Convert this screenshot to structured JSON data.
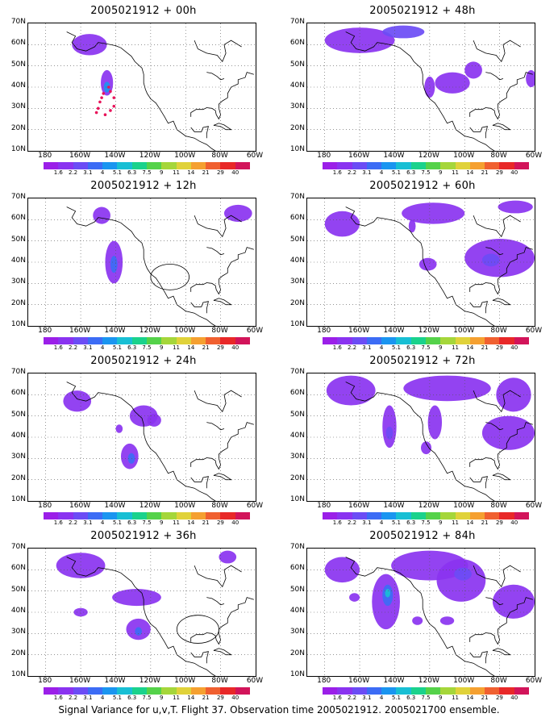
{
  "caption": "Signal Variance for u,v,T. Flight 37. Observation time 2005021912. 2005021700 ensemble.",
  "lat_labels": [
    "70N",
    "60N",
    "50N",
    "40N",
    "30N",
    "20N",
    "10N"
  ],
  "lon_labels": [
    "180",
    "160W",
    "140W",
    "120W",
    "100W",
    "80W",
    "60W"
  ],
  "colorbar": {
    "levels": [
      "1.6",
      "2.2",
      "3.1",
      "4",
      "5.1",
      "6.3",
      "7.5",
      "9",
      "11",
      "14",
      "21",
      "29",
      "40"
    ],
    "colors": [
      "#9b1fe8",
      "#8a33f0",
      "#6b4cf5",
      "#3c6cf5",
      "#1a95f0",
      "#18bfd4",
      "#1ad28c",
      "#55d24a",
      "#a5d63a",
      "#e0d23a",
      "#f5a030",
      "#f06030",
      "#e82828",
      "#d2145a"
    ]
  },
  "panels": [
    {
      "title": "2005021912 + 00h",
      "col": 0,
      "row": 0,
      "blobs": [
        {
          "lon": -155,
          "lat": 60,
          "rx": 10,
          "ry": 5,
          "level": 1
        },
        {
          "lon": -145,
          "lat": 42,
          "rx": 3.5,
          "ry": 6,
          "level": 1
        },
        {
          "lon": -145,
          "lat": 40,
          "rx": 1.8,
          "ry": 2.5,
          "level": 4
        }
      ],
      "track": [
        [
          -147,
          37
        ],
        [
          -148,
          35
        ],
        [
          -149,
          33
        ],
        [
          -150,
          30
        ],
        [
          -151,
          28
        ],
        [
          -146,
          27
        ],
        [
          -143,
          29
        ],
        [
          -141,
          31
        ],
        [
          -141,
          35
        ],
        [
          -143,
          38
        ],
        [
          -144,
          40
        ]
      ],
      "circle": null
    },
    {
      "title": "2005021912 + 48h",
      "col": 1,
      "row": 0,
      "blobs": [
        {
          "lon": -160,
          "lat": 62,
          "rx": 20,
          "ry": 6,
          "level": 1
        },
        {
          "lon": -135,
          "lat": 66,
          "rx": 12,
          "ry": 3,
          "level": 2
        },
        {
          "lon": -120,
          "lat": 40,
          "rx": 3,
          "ry": 5,
          "level": 1
        },
        {
          "lon": -107,
          "lat": 42,
          "rx": 10,
          "ry": 5,
          "level": 1
        },
        {
          "lon": -95,
          "lat": 48,
          "rx": 5,
          "ry": 4,
          "level": 1
        },
        {
          "lon": -62,
          "lat": 44,
          "rx": 3,
          "ry": 4,
          "level": 1
        }
      ],
      "track": [],
      "circle": null
    },
    {
      "title": "2005021912 + 12h",
      "col": 0,
      "row": 1,
      "blobs": [
        {
          "lon": -148,
          "lat": 62,
          "rx": 5,
          "ry": 4,
          "level": 1
        },
        {
          "lon": -70,
          "lat": 63,
          "rx": 8,
          "ry": 4,
          "level": 1
        },
        {
          "lon": -141,
          "lat": 40,
          "rx": 5,
          "ry": 10,
          "level": 1
        },
        {
          "lon": -141,
          "lat": 39,
          "rx": 2,
          "ry": 4,
          "level": 3
        }
      ],
      "track": [],
      "circle": {
        "lon": -109,
        "lat": 33,
        "r": 11
      }
    },
    {
      "title": "2005021912 + 60h",
      "col": 1,
      "row": 1,
      "blobs": [
        {
          "lon": -170,
          "lat": 58,
          "rx": 10,
          "ry": 6,
          "level": 1
        },
        {
          "lon": -118,
          "lat": 63,
          "rx": 18,
          "ry": 5,
          "level": 1
        },
        {
          "lon": -71,
          "lat": 66,
          "rx": 10,
          "ry": 3,
          "level": 1
        },
        {
          "lon": -130,
          "lat": 57,
          "rx": 2,
          "ry": 3,
          "level": 1
        },
        {
          "lon": -121,
          "lat": 39,
          "rx": 5,
          "ry": 3,
          "level": 1
        },
        {
          "lon": -80,
          "lat": 42,
          "rx": 20,
          "ry": 9,
          "level": 1
        },
        {
          "lon": -85,
          "lat": 41,
          "rx": 5,
          "ry": 3,
          "level": 2
        }
      ],
      "track": [],
      "circle": null
    },
    {
      "title": "2005021912 + 24h",
      "col": 0,
      "row": 2,
      "blobs": [
        {
          "lon": -162,
          "lat": 57,
          "rx": 8,
          "ry": 5,
          "level": 1
        },
        {
          "lon": -124,
          "lat": 50,
          "rx": 8,
          "ry": 5,
          "level": 1
        },
        {
          "lon": -132,
          "lat": 31,
          "rx": 5,
          "ry": 6,
          "level": 1
        },
        {
          "lon": -131,
          "lat": 30,
          "rx": 2,
          "ry": 2.5,
          "level": 3
        },
        {
          "lon": -138,
          "lat": 44,
          "rx": 2,
          "ry": 2,
          "level": 1
        },
        {
          "lon": -118,
          "lat": 48,
          "rx": 4,
          "ry": 3,
          "level": 1
        }
      ],
      "track": [],
      "circle": null
    },
    {
      "title": "2005021912 + 72h",
      "col": 1,
      "row": 2,
      "blobs": [
        {
          "lon": -165,
          "lat": 62,
          "rx": 14,
          "ry": 7,
          "level": 1
        },
        {
          "lon": -110,
          "lat": 63,
          "rx": 25,
          "ry": 6,
          "level": 1
        },
        {
          "lon": -72,
          "lat": 60,
          "rx": 10,
          "ry": 8,
          "level": 1
        },
        {
          "lon": -143,
          "lat": 45,
          "rx": 4,
          "ry": 10,
          "level": 1
        },
        {
          "lon": -143,
          "lat": 42,
          "rx": 2,
          "ry": 3,
          "level": 2
        },
        {
          "lon": -117,
          "lat": 47,
          "rx": 4,
          "ry": 8,
          "level": 1
        },
        {
          "lon": -122,
          "lat": 35,
          "rx": 3,
          "ry": 3,
          "level": 1
        },
        {
          "lon": -75,
          "lat": 42,
          "rx": 15,
          "ry": 8,
          "level": 1
        }
      ],
      "track": [],
      "circle": null
    },
    {
      "title": "2005021912 + 36h",
      "col": 0,
      "row": 3,
      "blobs": [
        {
          "lon": -160,
          "lat": 62,
          "rx": 14,
          "ry": 6,
          "level": 1
        },
        {
          "lon": -128,
          "lat": 47,
          "rx": 14,
          "ry": 4,
          "level": 1
        },
        {
          "lon": -127,
          "lat": 32,
          "rx": 7,
          "ry": 5,
          "level": 1
        },
        {
          "lon": -127,
          "lat": 31,
          "rx": 2,
          "ry": 2,
          "level": 3
        },
        {
          "lon": -160,
          "lat": 40,
          "rx": 4,
          "ry": 2,
          "level": 1
        },
        {
          "lon": -76,
          "lat": 66,
          "rx": 5,
          "ry": 3,
          "level": 1
        }
      ],
      "track": [],
      "circle": {
        "lon": -93,
        "lat": 32,
        "r": 12
      }
    },
    {
      "title": "2005021912 + 84h",
      "col": 1,
      "row": 3,
      "blobs": [
        {
          "lon": -170,
          "lat": 60,
          "rx": 10,
          "ry": 6,
          "level": 1
        },
        {
          "lon": -120,
          "lat": 62,
          "rx": 22,
          "ry": 7,
          "level": 1
        },
        {
          "lon": -145,
          "lat": 45,
          "rx": 8,
          "ry": 13,
          "level": 1
        },
        {
          "lon": -144,
          "lat": 48,
          "rx": 3,
          "ry": 5,
          "level": 3
        },
        {
          "lon": -144,
          "lat": 49,
          "rx": 1.5,
          "ry": 2,
          "level": 5
        },
        {
          "lon": -102,
          "lat": 55,
          "rx": 14,
          "ry": 10,
          "level": 1
        },
        {
          "lon": -101,
          "lat": 58,
          "rx": 5,
          "ry": 3,
          "level": 2
        },
        {
          "lon": -72,
          "lat": 45,
          "rx": 12,
          "ry": 8,
          "level": 1
        },
        {
          "lon": -127,
          "lat": 36,
          "rx": 3,
          "ry": 2,
          "level": 1
        },
        {
          "lon": -110,
          "lat": 36,
          "rx": 4,
          "ry": 2,
          "level": 1
        },
        {
          "lon": -163,
          "lat": 47,
          "rx": 3,
          "ry": 2,
          "level": 1
        }
      ],
      "track": [],
      "circle": null
    }
  ]
}
